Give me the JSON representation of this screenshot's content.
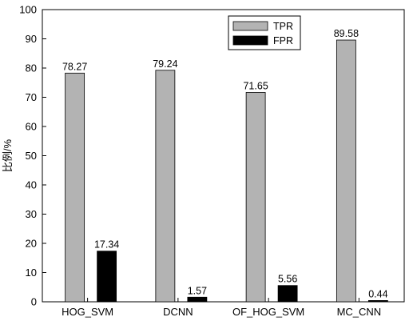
{
  "chart_data": {
    "type": "bar",
    "categories": [
      "HOG_SVM",
      "DCNN",
      "OF_HOG_SVM",
      "MC_CNN"
    ],
    "series": [
      {
        "name": "TPR",
        "values": [
          78.27,
          79.24,
          71.65,
          89.58
        ],
        "color": "#b3b3b3"
      },
      {
        "name": "FPR",
        "values": [
          17.34,
          1.57,
          5.56,
          0.44
        ],
        "color": "#000000"
      }
    ],
    "data_labels": {
      "TPR": [
        "78.27",
        "79.24",
        "71.65",
        "89.58"
      ],
      "FPR": [
        "17.34",
        "1.57",
        "5.56",
        "0.44"
      ]
    },
    "xlabel": "",
    "ylabel": "比例/%",
    "ylim": [
      0,
      100
    ],
    "yticks": [
      0,
      10,
      20,
      30,
      40,
      50,
      60,
      70,
      80,
      90,
      100
    ],
    "grid": false,
    "legend_position": "top-right-inner"
  }
}
